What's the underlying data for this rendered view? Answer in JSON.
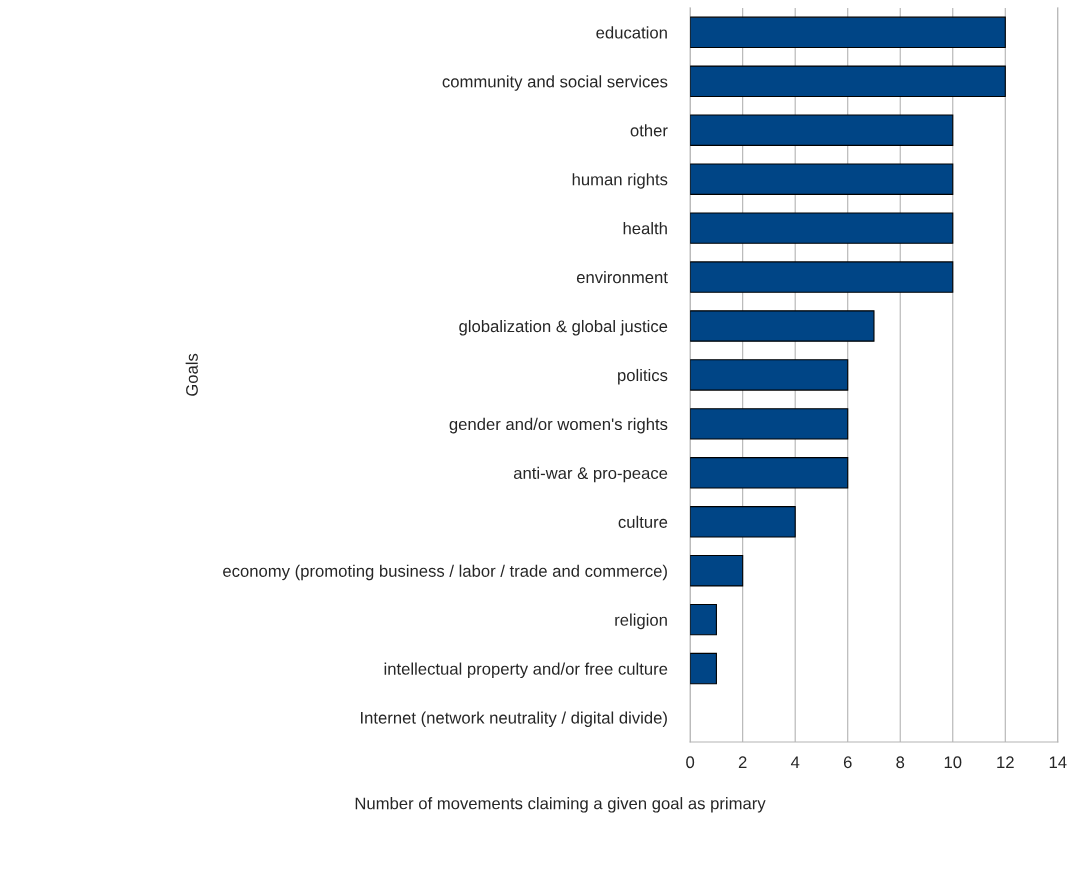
{
  "chart_data": {
    "type": "bar",
    "orientation": "horizontal",
    "xlabel": "Number of movements claiming a given goal as primary",
    "ylabel": "Goals",
    "categories": [
      "education",
      "community and social services",
      "other",
      "human rights",
      "health",
      "environment",
      "globalization & global justice",
      "politics",
      "gender and/or women's rights",
      "anti-war & pro-peace",
      "culture",
      "economy (promoting business / labor / trade and commerce)",
      "religion",
      "intellectual property and/or free culture",
      "Internet (network neutrality / digital divide)"
    ],
    "values": [
      12,
      12,
      10,
      10,
      10,
      10,
      7,
      6,
      6,
      6,
      4,
      2,
      1,
      1,
      0
    ],
    "color": "#004586",
    "xlim": [
      0,
      14
    ],
    "xticks": [
      0,
      2,
      4,
      6,
      8,
      10,
      12,
      14
    ],
    "grid": "x",
    "legend": false
  }
}
